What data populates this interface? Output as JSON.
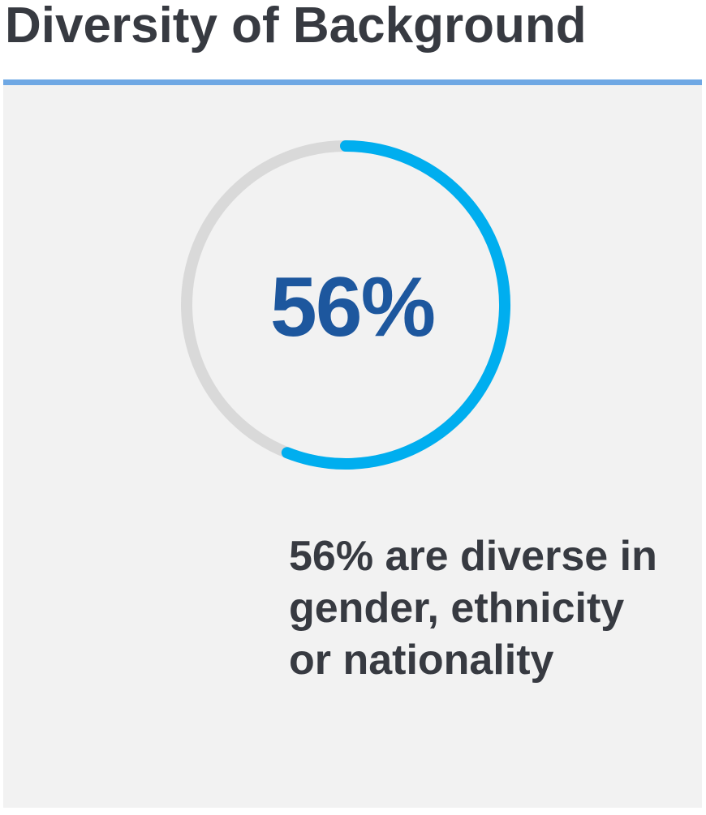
{
  "title": "Diversity of Background",
  "chart_data": {
    "type": "pie",
    "value_label": "56%",
    "value": 56,
    "max": 100,
    "caption": "56% are diverse in gender, ethnicity or nationality"
  },
  "colors": {
    "accent_rule": "#6fa8e4",
    "progress": "#00aeef",
    "track": "#d9d9d9",
    "value_text": "#1d579e",
    "panel_bg": "#f2f2f2",
    "text": "#373a41"
  }
}
